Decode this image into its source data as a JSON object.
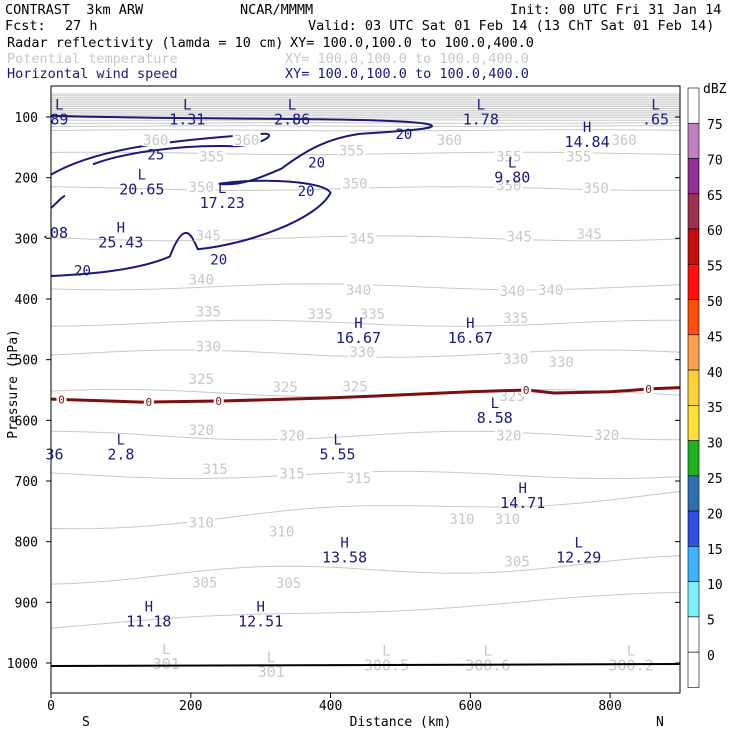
{
  "header": {
    "model": "CONTRAST  3km ARW",
    "org": "NCAR/MMMM",
    "init": "Init: 00 UTC Fri 31 Jan 14",
    "fcst_label": "Fcst:",
    "fcst_value": "27 h",
    "valid": "Valid: 03 UTC Sat 01 Feb 14 (13 ChT Sat 01 Feb 14)",
    "fields": [
      {
        "name": "Radar reflectivity (lamda = 10 cm)",
        "xy": "XY= 100.0,100.0 to 100.0,400.0",
        "color": "#000000"
      },
      {
        "name": "Potential temperature",
        "xy": "XY= 100.0,100.0 to 100.0,400.0",
        "color": "#c8c8c8"
      },
      {
        "name": "Horizontal wind speed",
        "xy": "XY= 100.0,100.0 to 100.0,400.0",
        "color": "#1a1a7a"
      }
    ]
  },
  "chart_data": {
    "type": "contour-cross-section",
    "xlabel": "Distance (km)",
    "ylabel": "Pressure (hPa)",
    "xlim": [
      0,
      900
    ],
    "ylim": [
      1050,
      60
    ],
    "x_ticks": [
      0,
      200,
      400,
      600,
      800
    ],
    "y_ticks": [
      100,
      200,
      300,
      400,
      500,
      600,
      700,
      800,
      900,
      1000
    ],
    "x_end_labels": {
      "left": "S",
      "right": "N"
    },
    "theta_labels": [
      {
        "x": 150,
        "p": 138,
        "text": "360"
      },
      {
        "x": 280,
        "p": 138,
        "text": "360"
      },
      {
        "x": 570,
        "p": 138,
        "text": "360"
      },
      {
        "x": 820,
        "p": 138,
        "text": "360"
      },
      {
        "x": 430,
        "p": 155,
        "text": "355"
      },
      {
        "x": 655,
        "p": 165,
        "text": "355"
      },
      {
        "x": 755,
        "p": 165,
        "text": "355"
      },
      {
        "x": 230,
        "p": 165,
        "text": "355"
      },
      {
        "x": 215,
        "p": 215,
        "text": "350"
      },
      {
        "x": 435,
        "p": 210,
        "text": "350"
      },
      {
        "x": 655,
        "p": 213,
        "text": "350"
      },
      {
        "x": 780,
        "p": 217,
        "text": "350"
      },
      {
        "x": 225,
        "p": 295,
        "text": "345"
      },
      {
        "x": 445,
        "p": 300,
        "text": "345"
      },
      {
        "x": 670,
        "p": 297,
        "text": "345"
      },
      {
        "x": 770,
        "p": 293,
        "text": "345"
      },
      {
        "x": 215,
        "p": 368,
        "text": "340"
      },
      {
        "x": 440,
        "p": 385,
        "text": "340"
      },
      {
        "x": 660,
        "p": 387,
        "text": "340"
      },
      {
        "x": 715,
        "p": 385,
        "text": "340"
      },
      {
        "x": 225,
        "p": 421,
        "text": "335"
      },
      {
        "x": 385,
        "p": 425,
        "text": "335"
      },
      {
        "x": 460,
        "p": 425,
        "text": "335"
      },
      {
        "x": 665,
        "p": 431,
        "text": "335"
      },
      {
        "x": 225,
        "p": 478,
        "text": "330"
      },
      {
        "x": 445,
        "p": 487,
        "text": "330"
      },
      {
        "x": 665,
        "p": 499,
        "text": "330"
      },
      {
        "x": 730,
        "p": 504,
        "text": "330"
      },
      {
        "x": 215,
        "p": 532,
        "text": "325"
      },
      {
        "x": 335,
        "p": 545,
        "text": "325"
      },
      {
        "x": 435,
        "p": 544,
        "text": "325"
      },
      {
        "x": 660,
        "p": 560,
        "text": "325"
      },
      {
        "x": 215,
        "p": 616,
        "text": "320"
      },
      {
        "x": 345,
        "p": 625,
        "text": "320"
      },
      {
        "x": 655,
        "p": 625,
        "text": "320"
      },
      {
        "x": 795,
        "p": 624,
        "text": "320"
      },
      {
        "x": 235,
        "p": 680,
        "text": "315"
      },
      {
        "x": 345,
        "p": 688,
        "text": "315"
      },
      {
        "x": 440,
        "p": 695,
        "text": "315"
      },
      {
        "x": 215,
        "p": 768,
        "text": "310"
      },
      {
        "x": 330,
        "p": 783,
        "text": "310"
      },
      {
        "x": 588,
        "p": 763,
        "text": "310"
      },
      {
        "x": 653,
        "p": 763,
        "text": "310"
      },
      {
        "x": 220,
        "p": 867,
        "text": "305"
      },
      {
        "x": 340,
        "p": 868,
        "text": "305"
      },
      {
        "x": 667,
        "p": 833,
        "text": "305"
      }
    ],
    "extrema": [
      {
        "x": 12,
        "p": 88,
        "type": "L",
        "value": "89"
      },
      {
        "x": 195,
        "p": 88,
        "type": "L",
        "value": "1.31"
      },
      {
        "x": 345,
        "p": 88,
        "type": "L",
        "value": "2.86"
      },
      {
        "x": 615,
        "p": 88,
        "type": "L",
        "value": "1.78"
      },
      {
        "x": 865,
        "p": 88,
        "type": "L",
        "value": ".65"
      },
      {
        "x": 767,
        "p": 125,
        "type": "H",
        "value": "14.84"
      },
      {
        "x": 660,
        "p": 183,
        "type": "L",
        "value": "9.80"
      },
      {
        "x": 130,
        "p": 203,
        "type": "L",
        "value": "20.65"
      },
      {
        "x": 245,
        "p": 225,
        "type": "L",
        "value": "17.23"
      },
      {
        "x": 5,
        "p": 275,
        "type": "",
        "value": ".08"
      },
      {
        "x": 100,
        "p": 290,
        "type": "H",
        "value": "25.43"
      },
      {
        "x": 440,
        "p": 448,
        "type": "H",
        "value": "16.67"
      },
      {
        "x": 600,
        "p": 448,
        "type": "H",
        "value": "16.67"
      },
      {
        "x": 635,
        "p": 580,
        "type": "L",
        "value": "8.58"
      },
      {
        "x": 5,
        "p": 640,
        "type": "",
        "value": "36"
      },
      {
        "x": 100,
        "p": 640,
        "type": "L",
        "value": "2.8"
      },
      {
        "x": 410,
        "p": 640,
        "type": "L",
        "value": "5.55"
      },
      {
        "x": 675,
        "p": 720,
        "type": "H",
        "value": "14.71"
      },
      {
        "x": 420,
        "p": 810,
        "type": "H",
        "value": "13.58"
      },
      {
        "x": 755,
        "p": 810,
        "type": "L",
        "value": "12.29"
      },
      {
        "x": 140,
        "p": 915,
        "type": "H",
        "value": "11.18"
      },
      {
        "x": 300,
        "p": 915,
        "type": "H",
        "value": "12.51"
      },
      {
        "x": 165,
        "p": 985,
        "type": "L",
        "value": "301",
        "theta": true
      },
      {
        "x": 315,
        "p": 998,
        "type": "L",
        "value": "301",
        "theta": true
      },
      {
        "x": 480,
        "p": 988,
        "type": "L",
        "value": "300.5",
        "theta": true
      },
      {
        "x": 625,
        "p": 988,
        "type": "L",
        "value": "300.6",
        "theta": true
      },
      {
        "x": 830,
        "p": 988,
        "type": "L",
        "value": "300.2",
        "theta": true
      }
    ],
    "wind_labels": [
      {
        "x": 150,
        "p": 162,
        "text": "25"
      },
      {
        "x": 380,
        "p": 175,
        "text": "20"
      },
      {
        "x": 505,
        "p": 128,
        "text": "20"
      },
      {
        "x": 365,
        "p": 222,
        "text": "20"
      },
      {
        "x": 240,
        "p": 335,
        "text": "20"
      },
      {
        "x": 45,
        "p": 353,
        "text": "20"
      }
    ],
    "reflectivity_zero": {
      "x": [
        0,
        130,
        250,
        400,
        500,
        600,
        680,
        720,
        800,
        860,
        900
      ],
      "p": [
        565,
        570,
        568,
        563,
        558,
        553,
        550,
        555,
        553,
        548,
        546
      ],
      "label": "0"
    },
    "reflectivity_zero_label_x": [
      15,
      140,
      240,
      680,
      855
    ],
    "ground_p": 1005,
    "colorbar": {
      "title": "dBZ",
      "levels": [
        "75",
        "70",
        "65",
        "60",
        "55",
        "50",
        "45",
        "40",
        "35",
        "30",
        "25",
        "20",
        "15",
        "10",
        "5",
        "0"
      ],
      "colors": [
        "#ffffff",
        "#c080c0",
        "#903090",
        "#9c3050",
        "#c01010",
        "#ff1010",
        "#ff5010",
        "#ffa050",
        "#ffd040",
        "#ffe040",
        "#20b020",
        "#3070b0",
        "#3050e0",
        "#40b0ff",
        "#80f0ff",
        "#ffffff",
        "#ffffff"
      ]
    }
  }
}
